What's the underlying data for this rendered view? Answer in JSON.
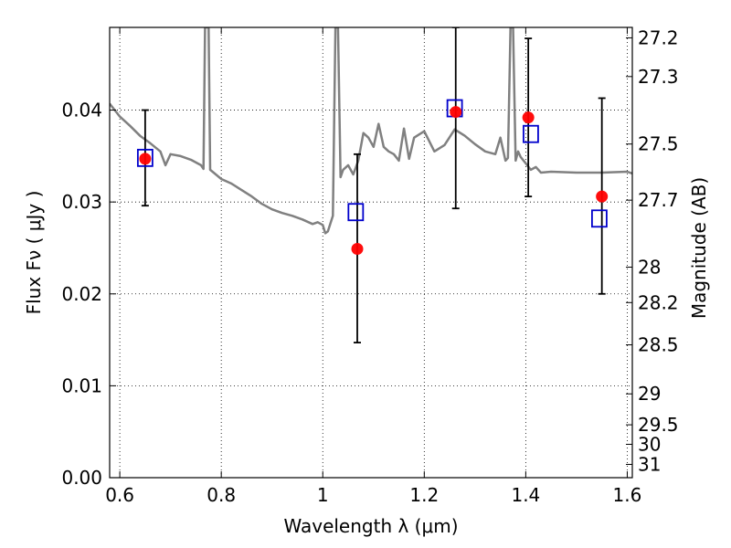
{
  "chart_data": {
    "type": "scatter",
    "xlabel": "Wavelength  λ (μm)",
    "ylabel": "Flux  Fν  ( μJy )",
    "y2label": "Magnitude (AB)",
    "xlim": [
      0.58,
      1.61
    ],
    "ylim": [
      0.0,
      0.049
    ],
    "grid": true,
    "x_ticks": [
      0.6,
      0.8,
      1.0,
      1.2,
      1.4,
      1.6
    ],
    "x_tick_labels": [
      "0.6",
      "0.8",
      "1",
      "1.2",
      "1.4",
      "1.6"
    ],
    "y_ticks": [
      0.0,
      0.01,
      0.02,
      0.03,
      0.04
    ],
    "y_tick_labels": [
      "0.00",
      "0.01",
      "0.02",
      "0.03",
      "0.04"
    ],
    "y2_tick_labels": [
      "27.2",
      "27.3",
      "27.5",
      "27.7",
      "28",
      "28.2",
      "28.5",
      "29",
      "29.5",
      "30",
      "31"
    ],
    "colors": {
      "model": "#808080",
      "observed": "#ff0000",
      "synthetic": "#0000cc",
      "errorbar": "#000000"
    },
    "series": [
      {
        "kind": "line",
        "x": [
          0.58,
          0.6,
          0.62,
          0.64,
          0.66,
          0.68,
          0.69,
          0.7,
          0.72,
          0.74,
          0.76,
          0.765,
          0.768,
          0.775,
          0.778,
          0.785,
          0.8,
          0.82,
          0.84,
          0.86,
          0.88,
          0.9,
          0.92,
          0.94,
          0.96,
          0.98,
          0.99,
          1.0,
          1.005,
          1.01,
          1.02,
          1.025,
          1.03,
          1.035,
          1.04,
          1.05,
          1.06,
          1.07,
          1.08,
          1.09,
          1.1,
          1.11,
          1.12,
          1.13,
          1.14,
          1.15,
          1.16,
          1.17,
          1.18,
          1.2,
          1.22,
          1.24,
          1.26,
          1.28,
          1.3,
          1.32,
          1.34,
          1.35,
          1.36,
          1.365,
          1.37,
          1.375,
          1.38,
          1.385,
          1.39,
          1.4,
          1.41,
          1.42,
          1.43,
          1.45,
          1.5,
          1.55,
          1.6,
          1.61
        ],
        "y": [
          0.0407,
          0.0393,
          0.0383,
          0.0372,
          0.0364,
          0.0355,
          0.034,
          0.0352,
          0.035,
          0.0346,
          0.034,
          0.0336,
          0.049,
          0.049,
          0.0335,
          0.0332,
          0.0325,
          0.032,
          0.0313,
          0.0306,
          0.0298,
          0.0292,
          0.0288,
          0.0285,
          0.0281,
          0.0276,
          0.0278,
          0.0275,
          0.0266,
          0.0268,
          0.0285,
          0.049,
          0.049,
          0.0327,
          0.0335,
          0.034,
          0.033,
          0.0345,
          0.0375,
          0.037,
          0.036,
          0.0385,
          0.036,
          0.0355,
          0.0352,
          0.0345,
          0.038,
          0.0347,
          0.037,
          0.0377,
          0.0355,
          0.0362,
          0.0379,
          0.0372,
          0.0363,
          0.0355,
          0.0352,
          0.037,
          0.0345,
          0.0348,
          0.049,
          0.049,
          0.0345,
          0.0355,
          0.0349,
          0.0342,
          0.0335,
          0.0338,
          0.0332,
          0.0333,
          0.0332,
          0.0332,
          0.0333,
          0.0331
        ]
      },
      {
        "kind": "points",
        "marker": "filled-circle",
        "x": [
          0.65,
          1.068,
          1.262,
          1.405,
          1.55
        ],
        "y": [
          0.0347,
          0.0249,
          0.0398,
          0.0392,
          0.0306
        ],
        "yerr_low": [
          0.0296,
          0.0147,
          0.0293,
          0.0306,
          0.02
        ],
        "yerr_high": [
          0.04,
          0.0352,
          0.049,
          0.0478,
          0.0413
        ]
      },
      {
        "kind": "points",
        "marker": "open-square",
        "x": [
          0.65,
          1.065,
          1.26,
          1.41,
          1.545
        ],
        "y": [
          0.0348,
          0.0289,
          0.0402,
          0.0374,
          0.0282
        ]
      }
    ]
  }
}
